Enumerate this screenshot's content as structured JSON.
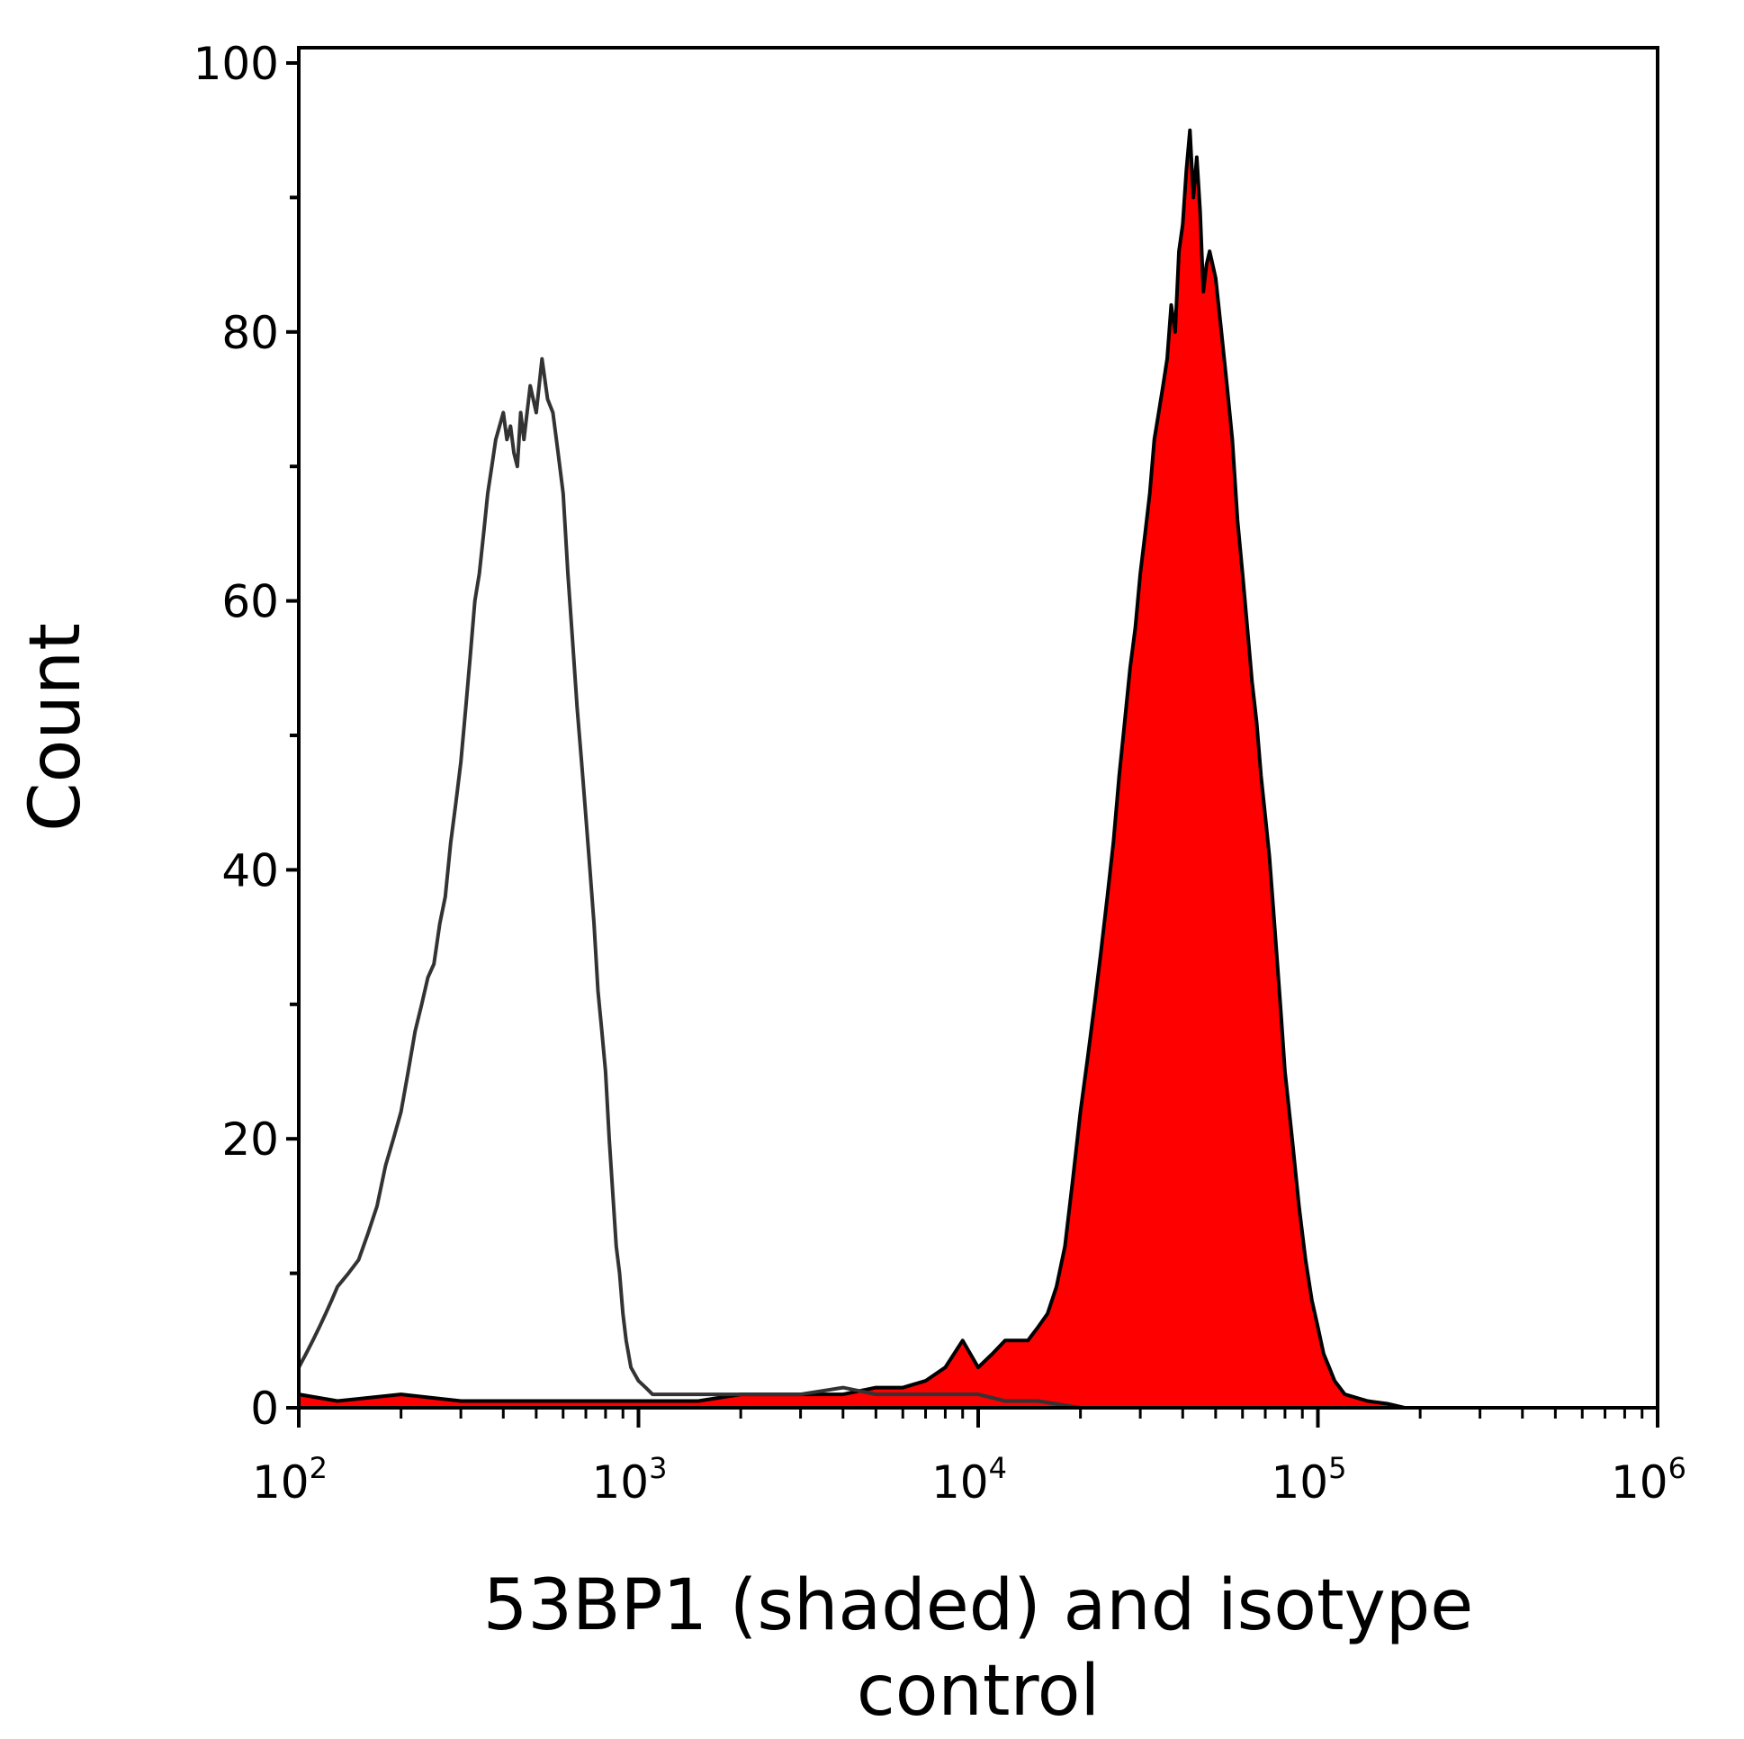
{
  "chart_data": {
    "type": "area",
    "xscale": "log",
    "xlim": [
      100,
      1000000
    ],
    "ylim": [
      0,
      100
    ],
    "xlabel": "53BP1 (shaded) and isotype control",
    "ylabel": "Count",
    "x_ticks": [
      {
        "base": "10",
        "exp": "2",
        "value": 100
      },
      {
        "base": "10",
        "exp": "3",
        "value": 1000
      },
      {
        "base": "10",
        "exp": "4",
        "value": 10000
      },
      {
        "base": "10",
        "exp": "5",
        "value": 100000
      },
      {
        "base": "10",
        "exp": "6",
        "value": 1000000
      }
    ],
    "y_ticks": [
      "0",
      "20",
      "40",
      "60",
      "80",
      "100"
    ],
    "grid": false,
    "series": [
      {
        "name": "53BP1",
        "style": "filled",
        "fill": "#ff0000",
        "stroke": "#000000",
        "points": [
          [
            100,
            1
          ],
          [
            130,
            0.5
          ],
          [
            200,
            1
          ],
          [
            300,
            0.5
          ],
          [
            500,
            0.5
          ],
          [
            800,
            0.5
          ],
          [
            1000,
            0.5
          ],
          [
            1500,
            0.5
          ],
          [
            2000,
            1
          ],
          [
            3000,
            1
          ],
          [
            4000,
            1
          ],
          [
            5000,
            1.5
          ],
          [
            6000,
            1.5
          ],
          [
            7000,
            2
          ],
          [
            8000,
            3
          ],
          [
            9000,
            5
          ],
          [
            10000,
            3
          ],
          [
            11000,
            4
          ],
          [
            12000,
            5
          ],
          [
            14000,
            5
          ],
          [
            15000,
            6
          ],
          [
            16000,
            7
          ],
          [
            17000,
            9
          ],
          [
            18000,
            12
          ],
          [
            19000,
            17
          ],
          [
            20000,
            22
          ],
          [
            21000,
            26
          ],
          [
            22000,
            30
          ],
          [
            23000,
            34
          ],
          [
            24000,
            38
          ],
          [
            25000,
            42
          ],
          [
            26000,
            47
          ],
          [
            27000,
            51
          ],
          [
            28000,
            55
          ],
          [
            29000,
            58
          ],
          [
            30000,
            62
          ],
          [
            31000,
            65
          ],
          [
            32000,
            68
          ],
          [
            33000,
            72
          ],
          [
            34000,
            74
          ],
          [
            35000,
            76
          ],
          [
            36000,
            78
          ],
          [
            37000,
            82
          ],
          [
            38000,
            80
          ],
          [
            39000,
            86
          ],
          [
            40000,
            88
          ],
          [
            41000,
            92
          ],
          [
            42000,
            95
          ],
          [
            43000,
            90
          ],
          [
            44000,
            93
          ],
          [
            45000,
            89
          ],
          [
            46000,
            83
          ],
          [
            47000,
            85
          ],
          [
            48000,
            86
          ],
          [
            50000,
            84
          ],
          [
            52000,
            80
          ],
          [
            54000,
            76
          ],
          [
            56000,
            72
          ],
          [
            58000,
            66
          ],
          [
            60000,
            62
          ],
          [
            62000,
            58
          ],
          [
            64000,
            54
          ],
          [
            66000,
            51
          ],
          [
            68000,
            47
          ],
          [
            70000,
            44
          ],
          [
            72000,
            41
          ],
          [
            74000,
            37
          ],
          [
            76000,
            33
          ],
          [
            78000,
            29
          ],
          [
            80000,
            25
          ],
          [
            84000,
            20
          ],
          [
            88000,
            15
          ],
          [
            92000,
            11
          ],
          [
            96000,
            8
          ],
          [
            100000,
            6
          ],
          [
            104000,
            4
          ],
          [
            108000,
            3
          ],
          [
            112000,
            2
          ],
          [
            120000,
            1
          ],
          [
            140000,
            0.5
          ],
          [
            160000,
            0.3
          ],
          [
            180000,
            0
          ],
          [
            1000000,
            0
          ]
        ]
      },
      {
        "name": "isotype control",
        "style": "outline",
        "fill": "none",
        "stroke": "#333333",
        "points": [
          [
            100,
            3
          ],
          [
            105,
            4
          ],
          [
            110,
            5
          ],
          [
            115,
            6
          ],
          [
            120,
            7
          ],
          [
            125,
            8
          ],
          [
            130,
            9
          ],
          [
            140,
            10
          ],
          [
            150,
            11
          ],
          [
            160,
            13
          ],
          [
            170,
            15
          ],
          [
            180,
            18
          ],
          [
            190,
            20
          ],
          [
            200,
            22
          ],
          [
            210,
            25
          ],
          [
            220,
            28
          ],
          [
            230,
            30
          ],
          [
            240,
            32
          ],
          [
            250,
            33
          ],
          [
            260,
            36
          ],
          [
            270,
            38
          ],
          [
            280,
            42
          ],
          [
            290,
            45
          ],
          [
            300,
            48
          ],
          [
            310,
            52
          ],
          [
            320,
            56
          ],
          [
            330,
            60
          ],
          [
            340,
            62
          ],
          [
            350,
            65
          ],
          [
            360,
            68
          ],
          [
            370,
            70
          ],
          [
            380,
            72
          ],
          [
            390,
            73
          ],
          [
            400,
            74
          ],
          [
            410,
            72
          ],
          [
            420,
            73
          ],
          [
            430,
            71
          ],
          [
            440,
            70
          ],
          [
            450,
            74
          ],
          [
            460,
            72
          ],
          [
            480,
            76
          ],
          [
            500,
            74
          ],
          [
            520,
            78
          ],
          [
            540,
            75
          ],
          [
            560,
            74
          ],
          [
            580,
            71
          ],
          [
            600,
            68
          ],
          [
            620,
            62
          ],
          [
            640,
            57
          ],
          [
            660,
            52
          ],
          [
            680,
            48
          ],
          [
            700,
            44
          ],
          [
            720,
            40
          ],
          [
            740,
            36
          ],
          [
            760,
            31
          ],
          [
            780,
            28
          ],
          [
            800,
            25
          ],
          [
            820,
            20
          ],
          [
            840,
            16
          ],
          [
            860,
            12
          ],
          [
            880,
            10
          ],
          [
            900,
            7
          ],
          [
            920,
            5
          ],
          [
            950,
            3
          ],
          [
            1000,
            2
          ],
          [
            1050,
            1.5
          ],
          [
            1100,
            1
          ],
          [
            1200,
            1
          ],
          [
            1500,
            1
          ],
          [
            2000,
            1
          ],
          [
            3000,
            1
          ],
          [
            4000,
            1.5
          ],
          [
            5000,
            1
          ],
          [
            6000,
            1
          ],
          [
            7000,
            1
          ],
          [
            8000,
            1
          ],
          [
            9000,
            1
          ],
          [
            10000,
            1
          ],
          [
            12000,
            0.5
          ],
          [
            15000,
            0.5
          ],
          [
            20000,
            0
          ],
          [
            1000000,
            0
          ]
        ]
      }
    ]
  }
}
